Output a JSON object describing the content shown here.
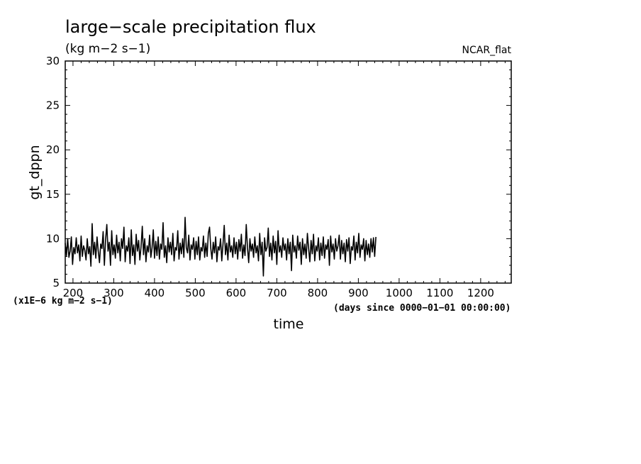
{
  "chart_data": {
    "type": "line",
    "title": "large−scale precipitation flux",
    "units": "(kg m−2 s−1)",
    "tag": "NCAR_flat",
    "xlabel": "time",
    "ylabel": "gt_dppn",
    "x_units_note": "(days since 0000−01−01 00:00:00)",
    "y_scale_note": "(x1E−6 kg m−2 s−1)",
    "xlim": [
      181,
      1275
    ],
    "ylim": [
      5,
      30
    ],
    "x_ticks": [
      200,
      300,
      400,
      500,
      600,
      700,
      800,
      900,
      1000,
      1100,
      1200
    ],
    "y_ticks": [
      5,
      10,
      15,
      20,
      25,
      30
    ],
    "series": [
      {
        "name": "gt_dppn",
        "x_start": 181,
        "x_step": 3,
        "values": [
          9.5,
          8.1,
          10.0,
          7.9,
          8.6,
          10.2,
          7.1,
          9.0,
          8.3,
          10.1,
          8.4,
          9.3,
          7.5,
          10.3,
          8.0,
          9.2,
          8.7,
          7.6,
          10.0,
          8.3,
          9.1,
          6.9,
          11.7,
          8.2,
          9.6,
          7.8,
          10.2,
          8.6,
          7.3,
          9.4,
          8.9,
          10.8,
          7.0,
          9.9,
          11.6,
          8.6,
          9.6,
          7.0,
          10.9,
          8.2,
          9.3,
          7.8,
          10.4,
          8.4,
          9.6,
          7.5,
          10.0,
          8.9,
          11.3,
          7.4,
          9.2,
          8.6,
          10.1,
          7.2,
          11.0,
          8.1,
          9.3,
          7.1,
          10.5,
          8.6,
          9.8,
          7.6,
          9.1,
          11.4,
          8.2,
          10.0,
          7.4,
          9.2,
          8.5,
          10.4,
          7.9,
          9.0,
          11.0,
          7.8,
          9.7,
          8.1,
          10.2,
          7.7,
          9.4,
          8.8,
          11.8,
          7.9,
          9.2,
          7.3,
          10.1,
          8.5,
          9.6,
          8.2,
          10.6,
          7.5,
          9.0,
          8.7,
          10.9,
          7.7,
          9.5,
          8.3,
          10.0,
          7.9,
          12.4,
          9.0,
          8.4,
          10.4,
          7.6,
          9.3,
          8.8,
          10.1,
          7.7,
          9.7,
          8.2,
          10.2,
          7.6,
          9.0,
          8.6,
          10.3,
          7.9,
          9.5,
          8.0,
          10.6,
          11.3,
          8.9,
          7.7,
          9.6,
          8.4,
          10.2,
          7.4,
          9.1,
          8.7,
          10.0,
          7.5,
          9.4,
          11.5,
          8.2,
          9.5,
          7.6,
          10.4,
          8.5,
          9.2,
          7.9,
          10.1,
          8.3,
          9.6,
          7.7,
          9.9,
          8.6,
          10.5,
          7.8,
          9.3,
          8.1,
          11.6,
          9.0,
          7.3,
          10.0,
          8.6,
          9.4,
          7.9,
          10.2,
          8.4,
          9.2,
          7.5,
          10.6,
          8.2,
          9.6,
          5.8,
          10.1,
          8.6,
          9.0,
          11.2,
          8.0,
          9.5,
          7.6,
          10.3,
          8.4,
          9.7,
          7.1,
          10.9,
          8.5,
          9.2,
          7.9,
          10.1,
          8.7,
          9.4,
          7.6,
          10.0,
          8.3,
          9.6,
          6.4,
          10.4,
          8.5,
          9.2,
          7.8,
          10.3,
          8.7,
          9.6,
          7.1,
          10.0,
          8.2,
          9.4,
          7.8,
          10.6,
          8.9,
          7.4,
          9.8,
          8.3,
          10.5,
          7.5,
          9.2,
          8.6,
          10.1,
          7.6,
          9.5,
          8.1,
          10.2,
          7.8,
          9.3,
          8.8,
          9.9,
          7.0,
          10.3,
          8.5,
          9.4,
          7.7,
          10.0,
          8.6,
          9.2,
          10.4,
          7.7,
          9.8,
          8.3,
          9.5,
          7.4,
          9.9,
          8.6,
          10.1,
          7.2,
          9.1,
          8.7,
          10.3,
          7.6,
          9.6,
          8.4,
          10.6,
          7.9,
          9.3,
          8.8,
          10.0,
          7.5,
          9.8,
          8.2,
          9.4,
          7.9,
          10.0,
          8.5,
          10.1,
          8.0,
          10.2
        ]
      }
    ]
  }
}
